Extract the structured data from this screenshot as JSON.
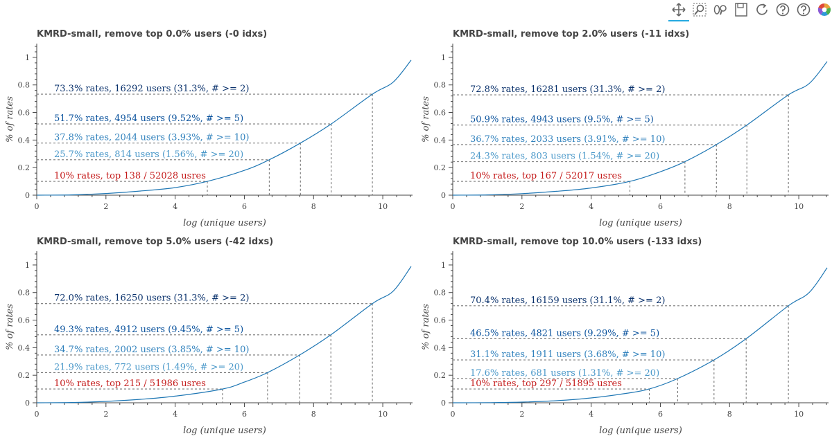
{
  "toolbar": {
    "tools": [
      {
        "icon": "pan-icon",
        "label": "Pan",
        "active": true
      },
      {
        "icon": "box-zoom-icon",
        "label": "Box Zoom",
        "active": false
      },
      {
        "icon": "wheel-zoom-icon",
        "label": "Wheel Zoom",
        "active": false
      },
      {
        "icon": "save-icon",
        "label": "Save",
        "active": false
      },
      {
        "icon": "reset-icon",
        "label": "Reset",
        "active": false
      },
      {
        "icon": "help-icon",
        "label": "Help",
        "active": false
      },
      {
        "icon": "help-icon",
        "label": "Help",
        "active": false
      },
      {
        "icon": "bokeh-logo-icon",
        "label": "Bokeh",
        "active": false
      }
    ]
  },
  "colors": {
    "curve": "#1f77b4",
    "tier_2": "#08306b",
    "tier_5": "#08519c",
    "tier_10": "#3182bd",
    "tier_20": "#4a98c9",
    "tier_top": "#c41a1a",
    "guide": "#777777",
    "axis": "#444444"
  },
  "chart_data": [
    {
      "type": "line",
      "title": "KMRD-small, remove top 0.0% users (-0 idxs)",
      "xlabel": "log (unique users)",
      "ylabel": "% of rates",
      "xlim": [
        0,
        10.86
      ],
      "ylim": [
        0,
        1.1
      ],
      "xticks": [
        "0",
        "2",
        "4",
        "6",
        "8",
        "10"
      ],
      "yticks": [
        "0",
        "0.2",
        "0.4",
        "0.6",
        "0.8",
        "1"
      ],
      "grid": false,
      "curve": {
        "x": [
          0,
          1,
          2,
          3,
          4,
          4.93,
          6,
          6.72,
          7.62,
          8.51,
          9.7,
          10.3,
          10.82
        ],
        "y": [
          0,
          0.002,
          0.012,
          0.03,
          0.055,
          0.1,
          0.18,
          0.257,
          0.378,
          0.517,
          0.733,
          0.82,
          0.98
        ]
      },
      "thresholds": [
        {
          "label": "73.3% rates, 16292 users (31.3%, # >= 2)",
          "y": 0.733,
          "x": 9.7,
          "tier": "tier_2"
        },
        {
          "label": "51.7% rates, 4954 users (9.52%, # >= 5)",
          "y": 0.517,
          "x": 8.51,
          "tier": "tier_5"
        },
        {
          "label": "37.8% rates, 2044 users (3.93%, # >= 10)",
          "y": 0.378,
          "x": 7.62,
          "tier": "tier_10"
        },
        {
          "label": "25.7% rates, 814 users (1.56%, # >= 20)",
          "y": 0.257,
          "x": 6.72,
          "tier": "tier_20"
        },
        {
          "label": "10% rates, top 138 / 52028 usres",
          "y": 0.1,
          "x": 4.93,
          "tier": "tier_top"
        }
      ]
    },
    {
      "type": "line",
      "title": "KMRD-small, remove top 2.0% users (-11 idxs)",
      "xlabel": "log (unique users)",
      "ylabel": "% of rates",
      "xlim": [
        0,
        10.86
      ],
      "ylim": [
        0,
        1.1
      ],
      "xticks": [
        "0",
        "2",
        "4",
        "6",
        "8",
        "10"
      ],
      "yticks": [
        "0",
        "0.2",
        "0.4",
        "0.6",
        "0.8",
        "1"
      ],
      "grid": false,
      "curve": {
        "x": [
          0,
          1,
          2,
          3,
          4,
          5.12,
          6,
          6.71,
          7.62,
          8.5,
          9.7,
          10.3,
          10.82
        ],
        "y": [
          0,
          0.002,
          0.011,
          0.028,
          0.052,
          0.1,
          0.17,
          0.243,
          0.367,
          0.509,
          0.728,
          0.81,
          0.97
        ]
      },
      "thresholds": [
        {
          "label": "72.8% rates, 16281 users (31.3%, # >= 2)",
          "y": 0.728,
          "x": 9.7,
          "tier": "tier_2"
        },
        {
          "label": "50.9% rates, 4943 users (9.5%, # >= 5)",
          "y": 0.509,
          "x": 8.5,
          "tier": "tier_5"
        },
        {
          "label": "36.7% rates, 2033 users (3.91%, # >= 10)",
          "y": 0.367,
          "x": 7.62,
          "tier": "tier_10"
        },
        {
          "label": "24.3% rates, 803 users (1.54%, # >= 20)",
          "y": 0.243,
          "x": 6.71,
          "tier": "tier_20"
        },
        {
          "label": "10% rates, top 167 / 52017 usres",
          "y": 0.1,
          "x": 5.12,
          "tier": "tier_top"
        }
      ]
    },
    {
      "type": "line",
      "title": "KMRD-small, remove top 5.0% users (-42 idxs)",
      "xlabel": "log (unique users)",
      "ylabel": "% of rates",
      "xlim": [
        0,
        10.86
      ],
      "ylim": [
        0,
        1.1
      ],
      "xticks": [
        "0",
        "2",
        "4",
        "6",
        "8",
        "10"
      ],
      "yticks": [
        "0",
        "0.2",
        "0.4",
        "0.6",
        "0.8",
        "1"
      ],
      "grid": false,
      "curve": {
        "x": [
          0,
          1,
          2,
          3,
          4,
          5.37,
          6,
          6.67,
          7.6,
          8.5,
          9.7,
          10.3,
          10.82
        ],
        "y": [
          0,
          0.002,
          0.01,
          0.025,
          0.048,
          0.1,
          0.15,
          0.219,
          0.347,
          0.493,
          0.72,
          0.81,
          0.99
        ]
      },
      "thresholds": [
        {
          "label": "72.0% rates, 16250 users (31.3%, # >= 2)",
          "y": 0.72,
          "x": 9.7,
          "tier": "tier_2"
        },
        {
          "label": "49.3% rates, 4912 users (9.45%, # >= 5)",
          "y": 0.493,
          "x": 8.5,
          "tier": "tier_5"
        },
        {
          "label": "34.7% rates, 2002 users (3.85%, # >= 10)",
          "y": 0.347,
          "x": 7.6,
          "tier": "tier_10"
        },
        {
          "label": "21.9% rates, 772 users (1.49%, # >= 20)",
          "y": 0.219,
          "x": 6.67,
          "tier": "tier_20"
        },
        {
          "label": "10% rates, top 215 / 51986 usres",
          "y": 0.1,
          "x": 5.37,
          "tier": "tier_top"
        }
      ]
    },
    {
      "type": "line",
      "title": "KMRD-small, remove top 10.0% users (-133 idxs)",
      "xlabel": "log (unique users)",
      "ylabel": "% of rates",
      "xlim": [
        0,
        10.86
      ],
      "ylim": [
        0,
        1.1
      ],
      "xticks": [
        "0",
        "2",
        "4",
        "6",
        "8",
        "10"
      ],
      "yticks": [
        "0",
        "0.2",
        "0.4",
        "0.6",
        "0.8",
        "1"
      ],
      "grid": false,
      "curve": {
        "x": [
          0,
          1,
          2,
          3,
          4,
          5,
          5.68,
          6.5,
          7.55,
          8.48,
          9.7,
          10.3,
          10.82
        ],
        "y": [
          0,
          0.001,
          0.005,
          0.015,
          0.035,
          0.068,
          0.1,
          0.176,
          0.311,
          0.465,
          0.704,
          0.8,
          0.98
        ]
      },
      "thresholds": [
        {
          "label": "70.4% rates, 16159 users (31.1%, # >= 2)",
          "y": 0.704,
          "x": 9.7,
          "tier": "tier_2"
        },
        {
          "label": "46.5% rates, 4821 users (9.29%, # >= 5)",
          "y": 0.465,
          "x": 8.48,
          "tier": "tier_5"
        },
        {
          "label": "31.1% rates, 1911 users (3.68%, # >= 10)",
          "y": 0.311,
          "x": 7.55,
          "tier": "tier_10"
        },
        {
          "label": "17.6% rates, 681 users (1.31%, # >= 20)",
          "y": 0.176,
          "x": 6.5,
          "tier": "tier_20"
        },
        {
          "label": "10% rates, top 297 / 51895 usres",
          "y": 0.1,
          "x": 5.68,
          "tier": "tier_top"
        }
      ]
    }
  ]
}
